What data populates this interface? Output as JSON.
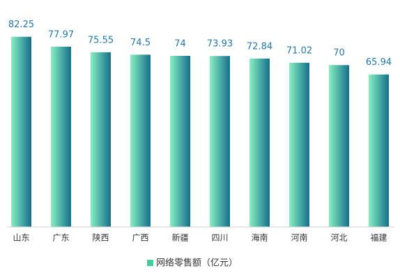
{
  "chart_data": {
    "type": "bar",
    "categories": [
      "山东",
      "广东",
      "陕西",
      "广西",
      "新疆",
      "四川",
      "海南",
      "河南",
      "河北",
      "福建"
    ],
    "series": [
      {
        "name": "网络零售额（亿元）",
        "color": "#3fcf9a",
        "gradient": [
          "#86f0c0",
          "#156f8c"
        ],
        "values": [
          82.25,
          77.97,
          75.55,
          74.5,
          74,
          73.93,
          72.84,
          71.02,
          70,
          65.94
        ]
      }
    ],
    "ylim": [
      0,
      90
    ],
    "grid": false,
    "legend": "bottom",
    "label_color": "#1f78b4"
  }
}
